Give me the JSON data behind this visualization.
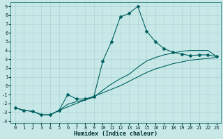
{
  "xlabel": "Humidex (Indice chaleur)",
  "bg_color": "#c8e8e8",
  "grid_color": "#b0d8d8",
  "line_color": "#006060",
  "xlim": [
    -0.5,
    23.5
  ],
  "ylim": [
    -4.2,
    9.5
  ],
  "xticks": [
    0,
    1,
    2,
    3,
    4,
    5,
    6,
    7,
    8,
    9,
    10,
    11,
    12,
    13,
    14,
    15,
    16,
    17,
    18,
    19,
    20,
    21,
    22,
    23
  ],
  "yticks": [
    -4,
    -3,
    -2,
    -1,
    0,
    1,
    2,
    3,
    4,
    5,
    6,
    7,
    8,
    9
  ],
  "xA": [
    0,
    1,
    2,
    3,
    4,
    5,
    6,
    7,
    8,
    9,
    10,
    11,
    12,
    13,
    14,
    15,
    16,
    17,
    18,
    19,
    20,
    21,
    22,
    23
  ],
  "yA": [
    -2.5,
    -2.8,
    -2.9,
    -3.3,
    -3.3,
    -2.8,
    -2.4,
    -2.0,
    -1.6,
    -1.2,
    -0.8,
    -0.4,
    0.0,
    0.5,
    1.0,
    1.5,
    1.9,
    2.2,
    2.5,
    2.7,
    2.9,
    3.0,
    3.1,
    3.2
  ],
  "xB": [
    0,
    1,
    2,
    3,
    4,
    5,
    6,
    7,
    8,
    9,
    10,
    11,
    12,
    13,
    14,
    15,
    16,
    17,
    18,
    19,
    20,
    21,
    22,
    23
  ],
  "yB": [
    -2.5,
    -2.8,
    -2.9,
    -3.3,
    -3.3,
    -2.8,
    -2.1,
    -1.8,
    -1.6,
    -1.3,
    -0.5,
    0.2,
    0.8,
    1.3,
    2.1,
    2.8,
    3.2,
    3.5,
    3.7,
    3.9,
    4.0,
    4.0,
    4.0,
    3.3
  ],
  "xC": [
    0,
    1,
    2,
    3,
    4,
    5,
    6,
    7,
    8,
    9,
    10,
    11,
    12,
    13,
    14,
    15,
    16,
    17,
    18,
    19,
    20,
    21,
    22,
    23
  ],
  "yC": [
    -2.5,
    -2.8,
    -2.9,
    -3.3,
    -3.3,
    -2.8,
    -1.0,
    -1.5,
    -1.5,
    -1.2,
    2.8,
    5.0,
    7.8,
    8.2,
    9.0,
    6.2,
    5.0,
    4.2,
    3.8,
    3.6,
    3.4,
    3.5,
    3.5,
    3.3
  ]
}
